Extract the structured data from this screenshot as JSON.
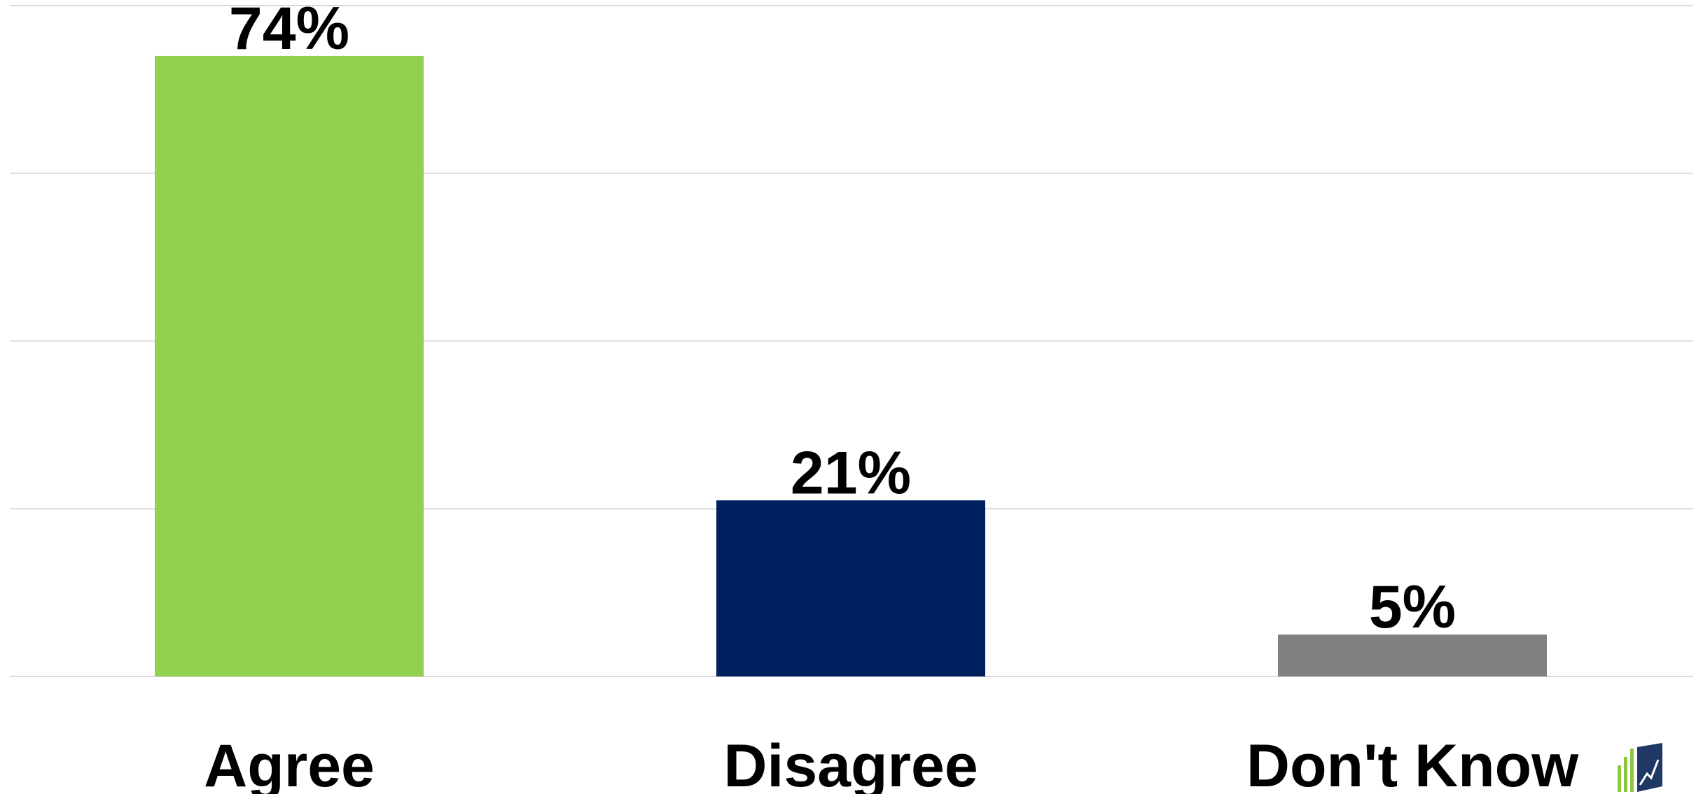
{
  "chart_data": {
    "type": "bar",
    "categories": [
      "Agree",
      "Disagree",
      "Don't Know"
    ],
    "values": [
      74,
      21,
      5
    ],
    "value_labels": [
      "74%",
      "21%",
      "5%"
    ],
    "colors": [
      "#92d050",
      "#002060",
      "#808080"
    ],
    "ylim": [
      0,
      80
    ],
    "grid": true,
    "legend": "none",
    "logo": {
      "icon": "bar-chart-logo-icon",
      "colors": [
        "#8dc63f",
        "#1f3864"
      ]
    }
  }
}
